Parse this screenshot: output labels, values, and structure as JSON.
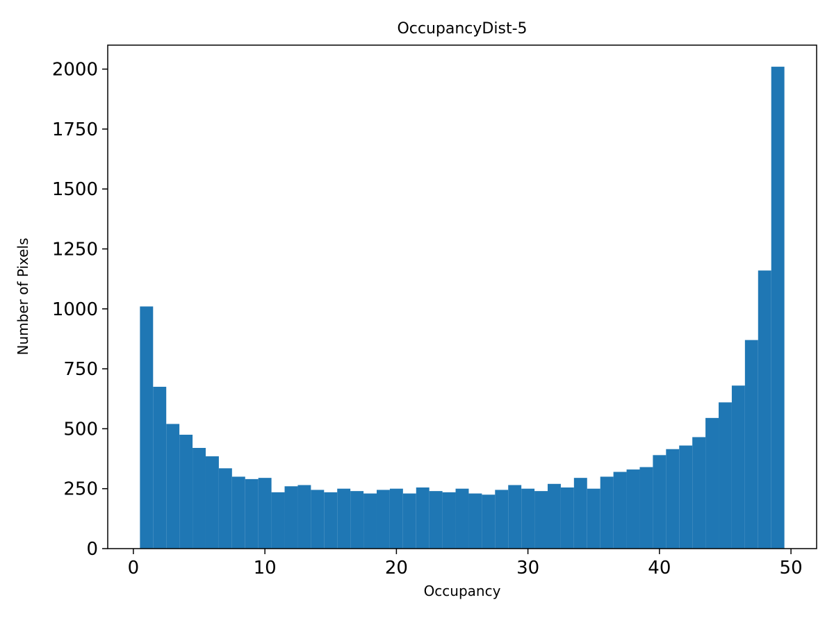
{
  "chart_data": {
    "type": "bar",
    "subtype": "histogram",
    "title": "OccupancyDist-5",
    "xlabel": "Occupancy",
    "ylabel": "Number of Pixels",
    "bar_color": "#1f77b4",
    "bin_start": 0.5,
    "bin_width": 1,
    "values": [
      1010,
      675,
      520,
      475,
      420,
      385,
      335,
      300,
      290,
      295,
      235,
      260,
      265,
      245,
      235,
      250,
      240,
      230,
      245,
      250,
      230,
      255,
      240,
      235,
      250,
      230,
      225,
      245,
      265,
      250,
      240,
      270,
      255,
      295,
      250,
      300,
      320,
      330,
      340,
      390,
      415,
      430,
      465,
      545,
      610,
      680,
      870,
      1160,
      2010
    ],
    "xlim": [
      -1.95,
      51.95
    ],
    "ylim": [
      0,
      2100
    ],
    "xticks": [
      0,
      10,
      20,
      30,
      40,
      50
    ],
    "yticks": [
      0,
      250,
      500,
      750,
      1000,
      1250,
      1500,
      1750,
      2000
    ],
    "grid": false,
    "legend": "none"
  }
}
